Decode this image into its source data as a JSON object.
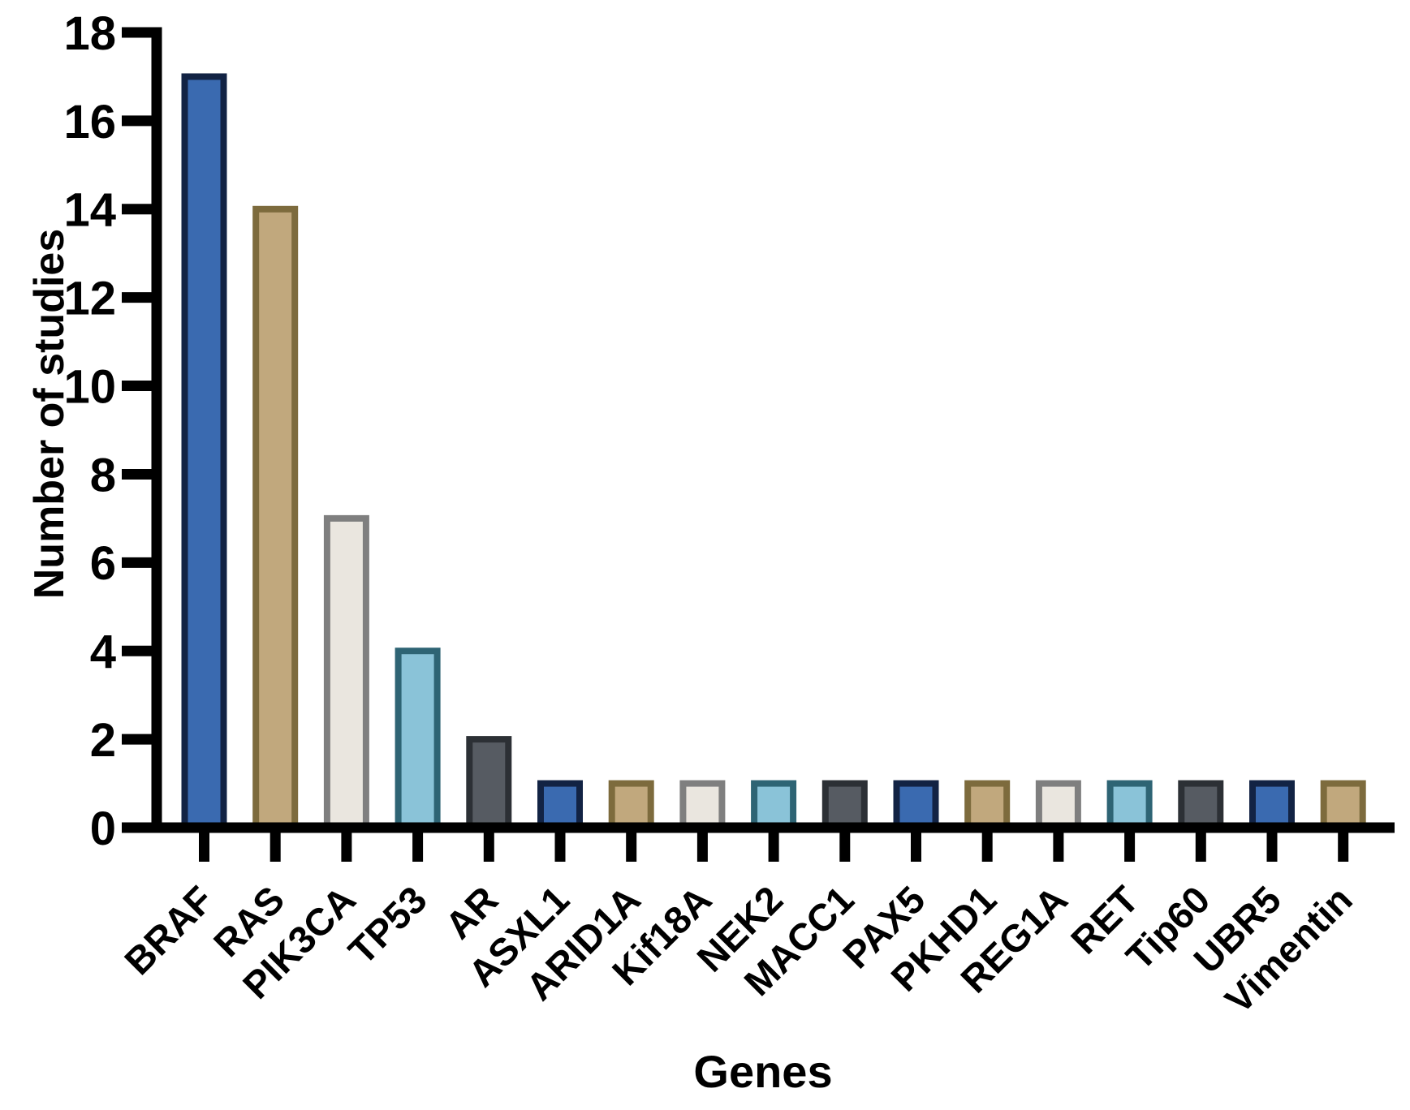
{
  "chart_data": {
    "type": "bar",
    "title": "",
    "xlabel": "Genes",
    "ylabel": "Number of studies",
    "categories": [
      "BRAF",
      "RAS",
      "PIK3CA",
      "TP53",
      "AR",
      "ASXL1",
      "ARID1A",
      "Kif18A",
      "NEK2",
      "MACC1",
      "PAX5",
      "PKHD1",
      "REG1A",
      "RET",
      "Tip60",
      "UBR5",
      "Vimentin"
    ],
    "values": [
      17,
      14,
      7,
      4,
      2,
      1,
      1,
      1,
      1,
      1,
      1,
      1,
      1,
      1,
      1,
      1,
      1
    ],
    "ylim": [
      0,
      18
    ],
    "yticks": [
      0,
      2,
      4,
      6,
      8,
      10,
      12,
      14,
      16,
      18
    ],
    "ytick_step": 2,
    "grid": false,
    "legend": "none",
    "xtick_label_rotation": -45,
    "axis_color": "#000000",
    "background_color": "#ffffff",
    "palette": {
      "fills": [
        "#3a6ab0",
        "#c1a87d",
        "#eae6df",
        "#8ac3d8",
        "#565b62"
      ],
      "strokes": [
        "#122344",
        "#7d6b3d",
        "#7f7f7f",
        "#2e6474",
        "#2c3035"
      ]
    }
  }
}
